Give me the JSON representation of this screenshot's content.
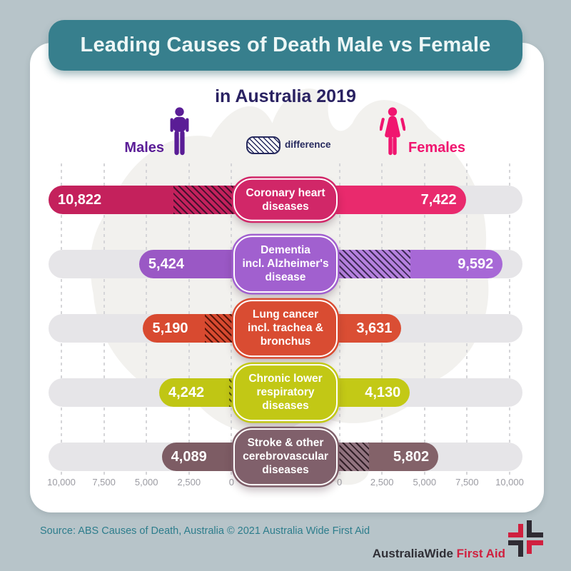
{
  "title": "Leading Causes of Death Male vs Female",
  "subtitle": "in Australia 2019",
  "icons": {
    "male_icon": "male-pictogram",
    "female_icon": "female-pictogram",
    "male_color": "#5a1d96",
    "female_color": "#f0156f"
  },
  "legend": {
    "males_label": "Males",
    "females_label": "Females",
    "difference_label": "difference"
  },
  "axis": {
    "left_ticks": [
      "10,000",
      "7,500",
      "5,000",
      "2,500",
      "0"
    ],
    "right_ticks": [
      "0",
      "2,500",
      "5,000",
      "7,500",
      "10,000"
    ],
    "max": 10000,
    "step": 2500
  },
  "chart_data": {
    "type": "bar",
    "variant": "diverging-horizontal",
    "title": "Leading Causes of Death Male vs Female in Australia 2019",
    "categories": [
      "Coronary heart diseases",
      "Dementia incl. Alzheimer's disease",
      "Lung cancer incl. trachea & bronchus",
      "Chronic lower respiratory diseases",
      "Stroke & other cerebrovascular diseases"
    ],
    "series": [
      {
        "name": "Males",
        "values": [
          10822,
          5424,
          5190,
          4242,
          4089
        ]
      },
      {
        "name": "Females",
        "values": [
          7422,
          9592,
          3631,
          4130,
          5802
        ]
      }
    ],
    "axis_range": [
      0,
      10000
    ],
    "tick_step": 2500,
    "legend_note": "hatched area = difference between male and female values",
    "grid": "dashed-vertical"
  },
  "rows": [
    {
      "label_lines": [
        "Coronary heart",
        "diseases"
      ],
      "male_display": "10,822",
      "female_display": "7,422",
      "male": 10822,
      "female": 7422,
      "male_color": "#c4215c",
      "female_color": "#e92a6d",
      "box_color": "#d12768",
      "hatch_dark": "#44102e",
      "hatch_light": "#c4215c"
    },
    {
      "label_lines": [
        "Dementia",
        "incl. Alzheimer's",
        "disease"
      ],
      "male_display": "5,424",
      "female_display": "9,592",
      "male": 5424,
      "female": 9592,
      "male_color": "#9a58c5",
      "female_color": "#a768d6",
      "box_color": "#a160cf",
      "hatch_dark": "#3f2a58",
      "hatch_light": "#b581de"
    },
    {
      "label_lines": [
        "Lung cancer",
        "incl. trachea &",
        "bronchus"
      ],
      "male_display": "5,190",
      "female_display": "3,631",
      "male": 5190,
      "female": 3631,
      "male_color": "#d84a30",
      "female_color": "#da4e34",
      "box_color": "#d94c32",
      "hatch_dark": "#571509",
      "hatch_light": "#d84a30"
    },
    {
      "label_lines": [
        "Chronic lower",
        "respiratory",
        "diseases"
      ],
      "male_display": "4,242",
      "female_display": "4,130",
      "male": 4242,
      "female": 4130,
      "male_color": "#c0c614",
      "female_color": "#c3c916",
      "box_color": "#c2c815",
      "hatch_dark": "#54560a",
      "hatch_light": "#c0c614"
    },
    {
      "label_lines": [
        "Stroke & other",
        "cerebrovascular",
        "diseases"
      ],
      "male_display": "4,089",
      "female_display": "5,802",
      "male": 4089,
      "female": 5802,
      "male_color": "#7d5c64",
      "female_color": "#836269",
      "box_color": "#80606b",
      "hatch_dark": "#322028",
      "hatch_light": "#927480"
    }
  ],
  "source": "Source: ABS Causes of Death, Australia © 2021 Australia Wide First Aid",
  "logo": {
    "part1": "AustraliaWide",
    "part2": "First Aid",
    "red": "#d0203f",
    "black": "#2f2b33"
  },
  "theme": {
    "background": "#b7c4c9",
    "card": "#ffffff",
    "banner": "#377f8d",
    "subtitle_color": "#2a2262",
    "track": "#e6e5e8",
    "source_color": "#2d7d8c",
    "map_silhouette": "#f2f1ee"
  }
}
